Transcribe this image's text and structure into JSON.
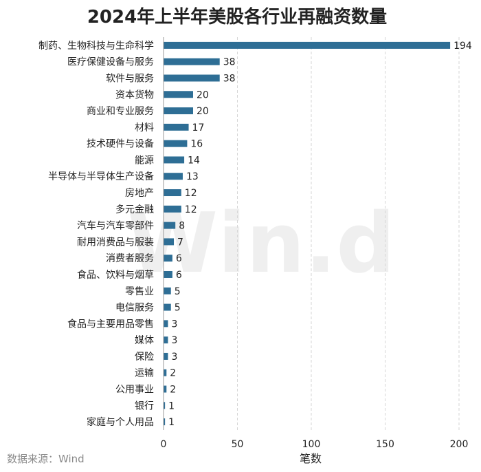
{
  "watermark": "Win.d",
  "source": "数据来源：Wind",
  "colors": {
    "bar": "#2e6e95",
    "grid": "#d6d6d6",
    "axis": "#9a9a9a"
  },
  "chart_data": {
    "type": "bar",
    "orientation": "horizontal",
    "title": "2024年上半年美股各行业再融资数量",
    "xlabel": "笔数",
    "ylabel": "",
    "xlim": [
      0,
      200
    ],
    "xticks": [
      0,
      50,
      100,
      150,
      200
    ],
    "grid": "vertical dashed",
    "data_labels": true,
    "categories": [
      "制药、生物科技与生命科学",
      "医疗保健设备与服务",
      "软件与服务",
      "资本货物",
      "商业和专业服务",
      "材料",
      "技术硬件与设备",
      "能源",
      "半导体与半导体生产设备",
      "房地产",
      "多元金融",
      "汽车与汽车零部件",
      "耐用消费品与服装",
      "消费者服务",
      "食品、饮料与烟草",
      "零售业",
      "电信服务",
      "食品与主要用品零售",
      "媒体",
      "保险",
      "运输",
      "公用事业",
      "银行",
      "家庭与个人用品"
    ],
    "values": [
      194,
      38,
      38,
      20,
      20,
      17,
      16,
      14,
      13,
      12,
      12,
      8,
      7,
      6,
      6,
      5,
      5,
      3,
      3,
      3,
      2,
      2,
      1,
      1
    ]
  }
}
